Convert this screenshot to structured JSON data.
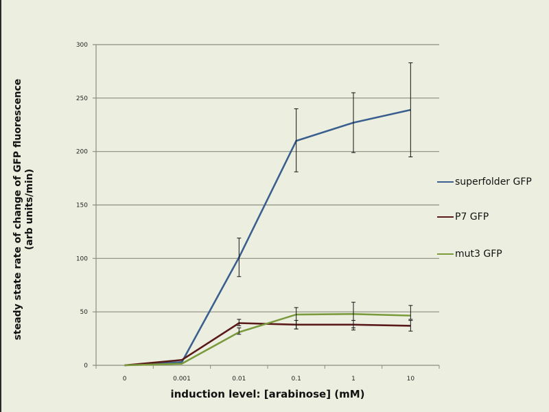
{
  "chart_data": {
    "type": "line",
    "title": "",
    "xlabel": "induction level: [arabinose] (mM)",
    "ylabel": "steady state rate of change of GFP fluorescence (arb units/min)",
    "ylabel_lines": [
      "steady state rate of change of GFP fluorescence",
      "(arb units/min)"
    ],
    "categories": [
      "0",
      "0.001",
      "0.01",
      "0.1",
      "1",
      "10"
    ],
    "ylim": [
      0,
      300
    ],
    "yticks": [
      0,
      50,
      100,
      150,
      200,
      250,
      300
    ],
    "grid": true,
    "legend_position": "right",
    "series": [
      {
        "name": "superfolder GFP",
        "color": "#3a5f8f",
        "values": [
          0,
          3,
          101,
          210,
          227,
          239
        ],
        "err_low": [
          0,
          0,
          83,
          181,
          199,
          195
        ],
        "err_high": [
          0,
          0,
          119,
          240,
          255,
          283
        ]
      },
      {
        "name": "P7 GFP",
        "color": "#5a1a1a",
        "values": [
          0,
          5,
          39.5,
          38,
          38,
          37
        ],
        "err_low": [
          0,
          0,
          37,
          34,
          33,
          32
        ],
        "err_high": [
          0,
          0,
          43,
          42,
          42,
          42
        ]
      },
      {
        "name": "mut3 GFP",
        "color": "#7a9a3c",
        "values": [
          0,
          1.5,
          31,
          47.5,
          48,
          46.5
        ],
        "err_low": [
          0,
          0,
          29,
          34,
          35,
          43
        ],
        "err_high": [
          0,
          0,
          35,
          54,
          59,
          56
        ]
      }
    ]
  },
  "legend": {
    "items": [
      {
        "label": "superfolder GFP",
        "color": "#3a5f8f"
      },
      {
        "label": "P7  GFP",
        "color": "#5a1a1a"
      },
      {
        "label": "mut3 GFP",
        "color": "#7a9a3c"
      }
    ]
  },
  "colors": {
    "background": "#ecefe0",
    "gridline": "#8a8c7c",
    "error_bar": "#111111"
  }
}
